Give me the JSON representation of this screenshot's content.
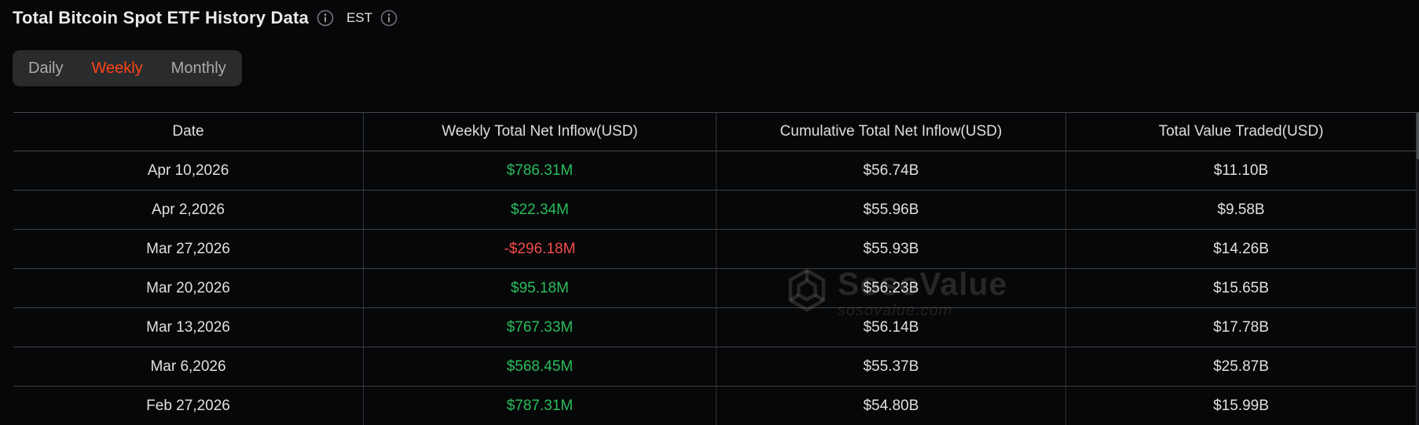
{
  "header": {
    "title": "Total Bitcoin Spot ETF History Data",
    "title_info_icon": "info-circle-icon",
    "timezone": "EST",
    "timezone_info_icon": "info-circle-icon"
  },
  "tabs": [
    {
      "label": "Daily",
      "active": false
    },
    {
      "label": "Weekly",
      "active": true
    },
    {
      "label": "Monthly",
      "active": false
    }
  ],
  "colors": {
    "active_tab": "#fb4617",
    "positive": "#2abd5c",
    "negative": "#f24b4c",
    "background": "#060708"
  },
  "watermark": {
    "logo_icon": "sosovalue-hexagon-logo",
    "brand": "SosoValue",
    "domain": "sosovalue.com"
  },
  "table": {
    "columns": [
      "Date",
      "Weekly Total Net Inflow(USD)",
      "Cumulative Total Net Inflow(USD)",
      "Total Value Traded(USD)"
    ],
    "rows": [
      {
        "date": "Apr 10,2026",
        "weekly_net_inflow": "$786.31M",
        "inflow_direction": "positive",
        "cumulative_net_inflow": "$56.74B",
        "total_value_traded": "$11.10B"
      },
      {
        "date": "Apr 2,2026",
        "weekly_net_inflow": "$22.34M",
        "inflow_direction": "positive",
        "cumulative_net_inflow": "$55.96B",
        "total_value_traded": "$9.58B"
      },
      {
        "date": "Mar 27,2026",
        "weekly_net_inflow": "-$296.18M",
        "inflow_direction": "negative",
        "cumulative_net_inflow": "$55.93B",
        "total_value_traded": "$14.26B"
      },
      {
        "date": "Mar 20,2026",
        "weekly_net_inflow": "$95.18M",
        "inflow_direction": "positive",
        "cumulative_net_inflow": "$56.23B",
        "total_value_traded": "$15.65B"
      },
      {
        "date": "Mar 13,2026",
        "weekly_net_inflow": "$767.33M",
        "inflow_direction": "positive",
        "cumulative_net_inflow": "$56.14B",
        "total_value_traded": "$17.78B"
      },
      {
        "date": "Mar 6,2026",
        "weekly_net_inflow": "$568.45M",
        "inflow_direction": "positive",
        "cumulative_net_inflow": "$55.37B",
        "total_value_traded": "$25.87B"
      },
      {
        "date": "Feb 27,2026",
        "weekly_net_inflow": "$787.31M",
        "inflow_direction": "positive",
        "cumulative_net_inflow": "$54.80B",
        "total_value_traded": "$15.99B"
      }
    ]
  }
}
